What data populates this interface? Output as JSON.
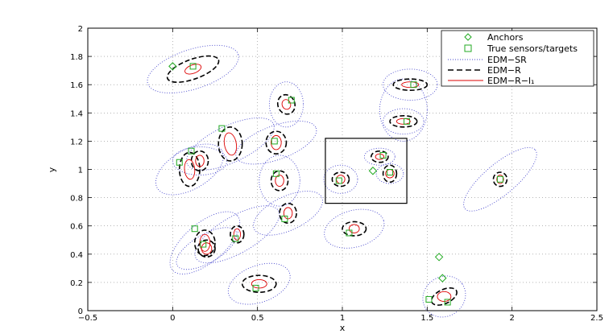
{
  "chart_data": {
    "type": "scatter",
    "xlabel": "x",
    "ylabel": "y",
    "xlim": [
      -0.5,
      2.5
    ],
    "ylim": [
      0,
      2
    ],
    "xticks": [
      "−0.5",
      "0",
      "0.5",
      "1",
      "1.5",
      "2",
      "2.5"
    ],
    "xtick_values": [
      -0.5,
      0,
      0.5,
      1,
      1.5,
      2,
      2.5
    ],
    "yticks": [
      "0",
      "0.2",
      "0.4",
      "0.6",
      "0.8",
      "1",
      "1.2",
      "1.4",
      "1.6",
      "1.8",
      "2"
    ],
    "ytick_values": [
      0,
      0.2,
      0.4,
      0.6,
      0.8,
      1,
      1.2,
      1.4,
      1.6,
      1.8,
      2
    ],
    "grid": true,
    "legend_position": "top-right",
    "legend": [
      {
        "label": "Anchors",
        "style": "diamond"
      },
      {
        "label": "True sensors/targets",
        "style": "square"
      },
      {
        "label": "EDM−SR",
        "style": "dotted"
      },
      {
        "label": "EDM−R",
        "style": "dashed"
      },
      {
        "label": "EDM−R−l₁",
        "style": "solid"
      }
    ],
    "colors": {
      "anchors": "#22aa22",
      "targets": "#22aa22",
      "sr": "#4444cc",
      "r": "#000000",
      "l1": "#dd0000"
    },
    "anchors": [
      {
        "x": 0.0,
        "y": 1.73
      },
      {
        "x": 1.18,
        "y": 0.99
      },
      {
        "x": 1.57,
        "y": 0.38
      },
      {
        "x": 1.59,
        "y": 0.23
      }
    ],
    "targets": [
      {
        "x": 0.12,
        "y": 1.73
      },
      {
        "x": 0.7,
        "y": 1.49
      },
      {
        "x": 0.29,
        "y": 1.29
      },
      {
        "x": 0.6,
        "y": 1.2
      },
      {
        "x": 0.11,
        "y": 1.13
      },
      {
        "x": 0.04,
        "y": 1.05
      },
      {
        "x": 0.61,
        "y": 0.97
      },
      {
        "x": 0.98,
        "y": 0.92
      },
      {
        "x": 1.24,
        "y": 1.1
      },
      {
        "x": 1.28,
        "y": 0.98
      },
      {
        "x": 1.38,
        "y": 1.34
      },
      {
        "x": 1.42,
        "y": 1.6
      },
      {
        "x": 1.93,
        "y": 0.93
      },
      {
        "x": 0.13,
        "y": 0.58
      },
      {
        "x": 0.18,
        "y": 0.47
      },
      {
        "x": 0.37,
        "y": 0.51
      },
      {
        "x": 0.66,
        "y": 0.65
      },
      {
        "x": 1.04,
        "y": 0.55
      },
      {
        "x": 0.49,
        "y": 0.16
      },
      {
        "x": 1.51,
        "y": 0.08
      },
      {
        "x": 1.62,
        "y": 0.06
      }
    ],
    "ellipses": [
      {
        "x": 0.12,
        "y": 1.71,
        "sr": [
          0.28,
          0.14,
          18
        ],
        "r": [
          0.16,
          0.07,
          20
        ],
        "l1": [
          0.05,
          0.03,
          20
        ]
      },
      {
        "x": 0.67,
        "y": 1.46,
        "sr": [
          0.1,
          0.16,
          0
        ],
        "r": [
          0.05,
          0.07,
          20
        ],
        "l1": [
          0.025,
          0.035,
          20
        ]
      },
      {
        "x": 0.34,
        "y": 1.18,
        "sr": [
          0.28,
          0.13,
          25
        ],
        "r": [
          0.07,
          0.12,
          0
        ],
        "l1": [
          0.035,
          0.08,
          10
        ]
      },
      {
        "x": 0.61,
        "y": 1.19,
        "sr": [
          0.25,
          0.12,
          20
        ],
        "r": [
          0.06,
          0.08,
          0
        ],
        "l1": [
          0.03,
          0.05,
          0
        ]
      },
      {
        "x": 0.1,
        "y": 1.0,
        "sr": [
          0.22,
          0.14,
          30
        ],
        "r": [
          0.06,
          0.12,
          0
        ],
        "l1": [
          0.03,
          0.07,
          5
        ]
      },
      {
        "x": 0.16,
        "y": 1.06,
        "sr": [
          0.16,
          0.1,
          0
        ],
        "r": [
          0.05,
          0.07,
          0
        ],
        "l1": [
          0.025,
          0.04,
          0
        ]
      },
      {
        "x": 0.63,
        "y": 0.92,
        "sr": [
          0.12,
          0.18,
          0
        ],
        "r": [
          0.05,
          0.07,
          0
        ],
        "l1": [
          0.025,
          0.04,
          0
        ]
      },
      {
        "x": 0.99,
        "y": 0.93,
        "sr": [
          0.1,
          0.1,
          0
        ],
        "r": [
          0.05,
          0.05,
          0
        ],
        "l1": [
          0.025,
          0.03,
          0
        ]
      },
      {
        "x": 1.22,
        "y": 1.09,
        "sr": [
          0.09,
          0.06,
          0
        ],
        "r": [
          0.05,
          0.04,
          0
        ],
        "l1": [
          0.025,
          0.02,
          0
        ]
      },
      {
        "x": 1.28,
        "y": 0.97,
        "sr": [
          0.08,
          0.07,
          0
        ],
        "r": [
          0.04,
          0.06,
          0
        ],
        "l1": [
          0.025,
          0.03,
          0
        ]
      },
      {
        "x": 1.36,
        "y": 1.34,
        "sr": [
          0.12,
          0.09,
          0
        ],
        "r": [
          0.08,
          0.04,
          0
        ],
        "l1": [
          0.04,
          0.02,
          0
        ]
      },
      {
        "x": 1.4,
        "y": 1.6,
        "sr": [
          0.16,
          0.11,
          0
        ],
        "r": [
          0.1,
          0.04,
          0
        ],
        "l1": [
          0.05,
          0.02,
          0
        ]
      },
      {
        "x": 1.36,
        "y": 1.42,
        "sr": [
          0.14,
          0.22,
          0
        ],
        "r": [
          0,
          0,
          0
        ],
        "l1": [
          0,
          0,
          0
        ]
      },
      {
        "x": 1.93,
        "y": 0.93,
        "sr": [
          0.27,
          0.11,
          40
        ],
        "r": [
          0.04,
          0.05,
          0
        ],
        "l1": [
          0.02,
          0.03,
          0
        ]
      },
      {
        "x": 0.19,
        "y": 0.48,
        "sr": [
          0.25,
          0.14,
          40
        ],
        "r": [
          0.06,
          0.09,
          0
        ],
        "l1": [
          0.03,
          0.06,
          0
        ]
      },
      {
        "x": 0.2,
        "y": 0.44,
        "sr": [
          0.2,
          0.1,
          30
        ],
        "r": [
          0.05,
          0.06,
          0
        ],
        "l1": [
          0.03,
          0.04,
          0
        ]
      },
      {
        "x": 0.38,
        "y": 0.54,
        "sr": [
          0.28,
          0.13,
          30
        ],
        "r": [
          0.04,
          0.06,
          0
        ],
        "l1": [
          0.02,
          0.04,
          0
        ]
      },
      {
        "x": 0.68,
        "y": 0.69,
        "sr": [
          0.22,
          0.12,
          25
        ],
        "r": [
          0.05,
          0.07,
          0
        ],
        "l1": [
          0.025,
          0.04,
          0
        ]
      },
      {
        "x": 1.07,
        "y": 0.58,
        "sr": [
          0.18,
          0.13,
          15
        ],
        "r": [
          0.07,
          0.05,
          0
        ],
        "l1": [
          0.03,
          0.03,
          0
        ]
      },
      {
        "x": 0.51,
        "y": 0.19,
        "sr": [
          0.19,
          0.13,
          20
        ],
        "r": [
          0.1,
          0.06,
          0
        ],
        "l1": [
          0.045,
          0.03,
          0
        ]
      },
      {
        "x": 1.6,
        "y": 0.1,
        "sr": [
          0.13,
          0.14,
          35
        ],
        "r": [
          0.08,
          0.05,
          25
        ],
        "l1": [
          0.04,
          0.035,
          0
        ]
      }
    ],
    "zoom_box": {
      "x": [
        0.9,
        1.38
      ],
      "y": [
        0.76,
        1.22
      ]
    }
  }
}
